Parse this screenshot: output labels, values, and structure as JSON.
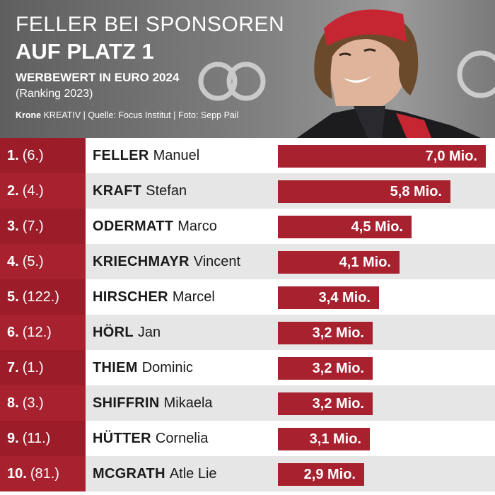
{
  "header": {
    "title_line1": "FELLER BEI SPONSOREN",
    "title_line2": "AUF PLATZ 1",
    "subtitle": "WERBEWERT IN EURO 2024",
    "subtitle_note": "(Ranking 2023)",
    "credit_brand": "Krone",
    "credit_rest": " KREATIV | Quelle: Focus Institut | Foto: Sepp Pail"
  },
  "colors": {
    "accent": "#a8212f",
    "accent_dark": "#9c1c2a",
    "row_alt": "#e6e6e6"
  },
  "chart_data": {
    "type": "bar",
    "orientation": "horizontal",
    "title": "WERBEWERT IN EURO 2024",
    "unit": "Mio.",
    "xlim": [
      0,
      7.0
    ],
    "rows": [
      {
        "rank": "1.",
        "prev": "(6.)",
        "last": "FELLER",
        "first": "Manuel",
        "value": 7.0,
        "label": "7,0 Mio."
      },
      {
        "rank": "2.",
        "prev": "(4.)",
        "last": "KRAFT",
        "first": "Stefan",
        "value": 5.8,
        "label": "5,8 Mio."
      },
      {
        "rank": "3.",
        "prev": "(7.)",
        "last": "ODERMATT",
        "first": "Marco",
        "value": 4.5,
        "label": "4,5 Mio."
      },
      {
        "rank": "4.",
        "prev": "(5.)",
        "last": "KRIECHMAYR",
        "first": "Vincent",
        "value": 4.1,
        "label": "4,1 Mio."
      },
      {
        "rank": "5.",
        "prev": "(122.)",
        "last": "HIRSCHER",
        "first": "Marcel",
        "value": 3.4,
        "label": "3,4 Mio."
      },
      {
        "rank": "6.",
        "prev": "(12.)",
        "last": "HÖRL",
        "first": "Jan",
        "value": 3.2,
        "label": "3,2 Mio."
      },
      {
        "rank": "7.",
        "prev": "(1.)",
        "last": "THIEM",
        "first": "Dominic",
        "value": 3.2,
        "label": "3,2 Mio."
      },
      {
        "rank": "8.",
        "prev": "(3.)",
        "last": "SHIFFRIN",
        "first": "Mikaela",
        "value": 3.2,
        "label": "3,2 Mio."
      },
      {
        "rank": "9.",
        "prev": "(11.)",
        "last": "HÜTTER",
        "first": "Cornelia",
        "value": 3.1,
        "label": "3,1 Mio."
      },
      {
        "rank": "10.",
        "prev": "(81.)",
        "last": "MCGRATH",
        "first": "Atle Lie",
        "value": 2.9,
        "label": "2,9 Mio."
      }
    ]
  }
}
